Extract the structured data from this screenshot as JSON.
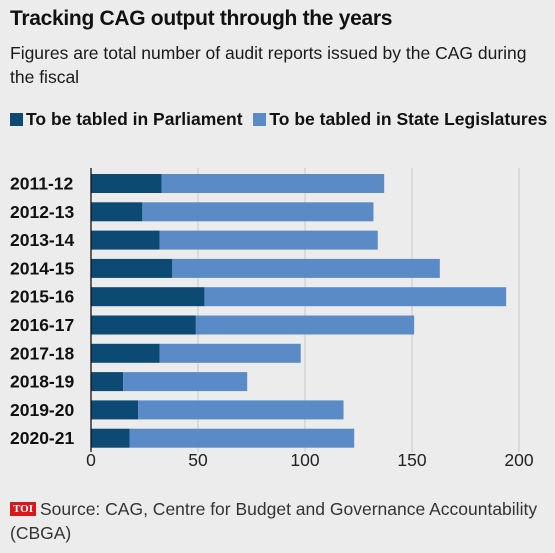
{
  "title": "Tracking CAG output through the years",
  "subtitle": "Figures are total number of audit reports issued by the CAG during the fiscal",
  "source": {
    "logo_text": "TOI",
    "text": "Source: CAG, Centre for Budget and Governance Accountability (CBGA)"
  },
  "colors": {
    "parliament": "#0c4a73",
    "state": "#5b8bc6",
    "grid": "#c9c9c9"
  },
  "chart_data": {
    "type": "bar",
    "orientation": "horizontal",
    "stacked": true,
    "categories": [
      "2011-12",
      "2012-13",
      "2013-14",
      "2014-15",
      "2015-16",
      "2016-17",
      "2017-18",
      "2018-19",
      "2019-20",
      "2020-21"
    ],
    "series": [
      {
        "name": "To be tabled in Parliament",
        "values": [
          33,
          24,
          32,
          38,
          53,
          49,
          32,
          15,
          22,
          18
        ]
      },
      {
        "name": "To be tabled in State Legislatures",
        "values": [
          104,
          108,
          102,
          125,
          141,
          102,
          66,
          58,
          96,
          105
        ]
      }
    ],
    "xlim": [
      0,
      200
    ],
    "xticks": [
      "0",
      "50",
      "100",
      "150",
      "200"
    ],
    "grid": true,
    "legend_position": "top-left"
  }
}
